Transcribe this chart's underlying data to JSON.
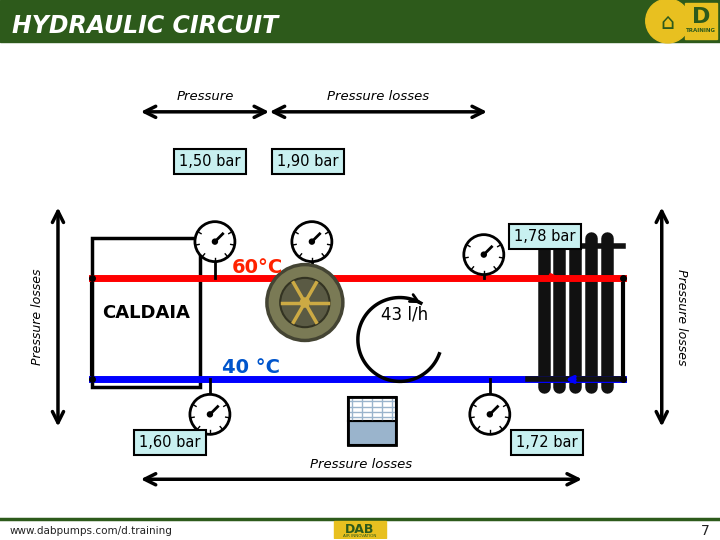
{
  "title_display": "HYDRAULIC CIRCUIT",
  "bg_color": "#ffffff",
  "header_color": "#2d5a1b",
  "header_text_color": "#ffffff",
  "footer_text": "www.dabpumps.com/d.training",
  "page_number": "7",
  "label_150": "1,50 bar",
  "label_190": "1,90 bar",
  "label_178": "1,78 bar",
  "label_160": "1,60 bar",
  "label_172": "1,72 bar",
  "label_60c": "60°C",
  "label_40c": "40 °C",
  "label_flow": "43 l/h",
  "caldaia_text": "CALDAIA",
  "pressure_label": "Pressure",
  "pressure_losses_label": "Pressure losses",
  "red_color": "#ff0000",
  "blue_color": "#0000ff",
  "red_text": "#ff2200",
  "blue_text": "#0055cc",
  "box_fill": "#c8f0f0",
  "box_edge": "#000000",
  "radiator_color": "#111111",
  "caldaia_fill": "#ffffff",
  "caldaia_edge": "#000000"
}
